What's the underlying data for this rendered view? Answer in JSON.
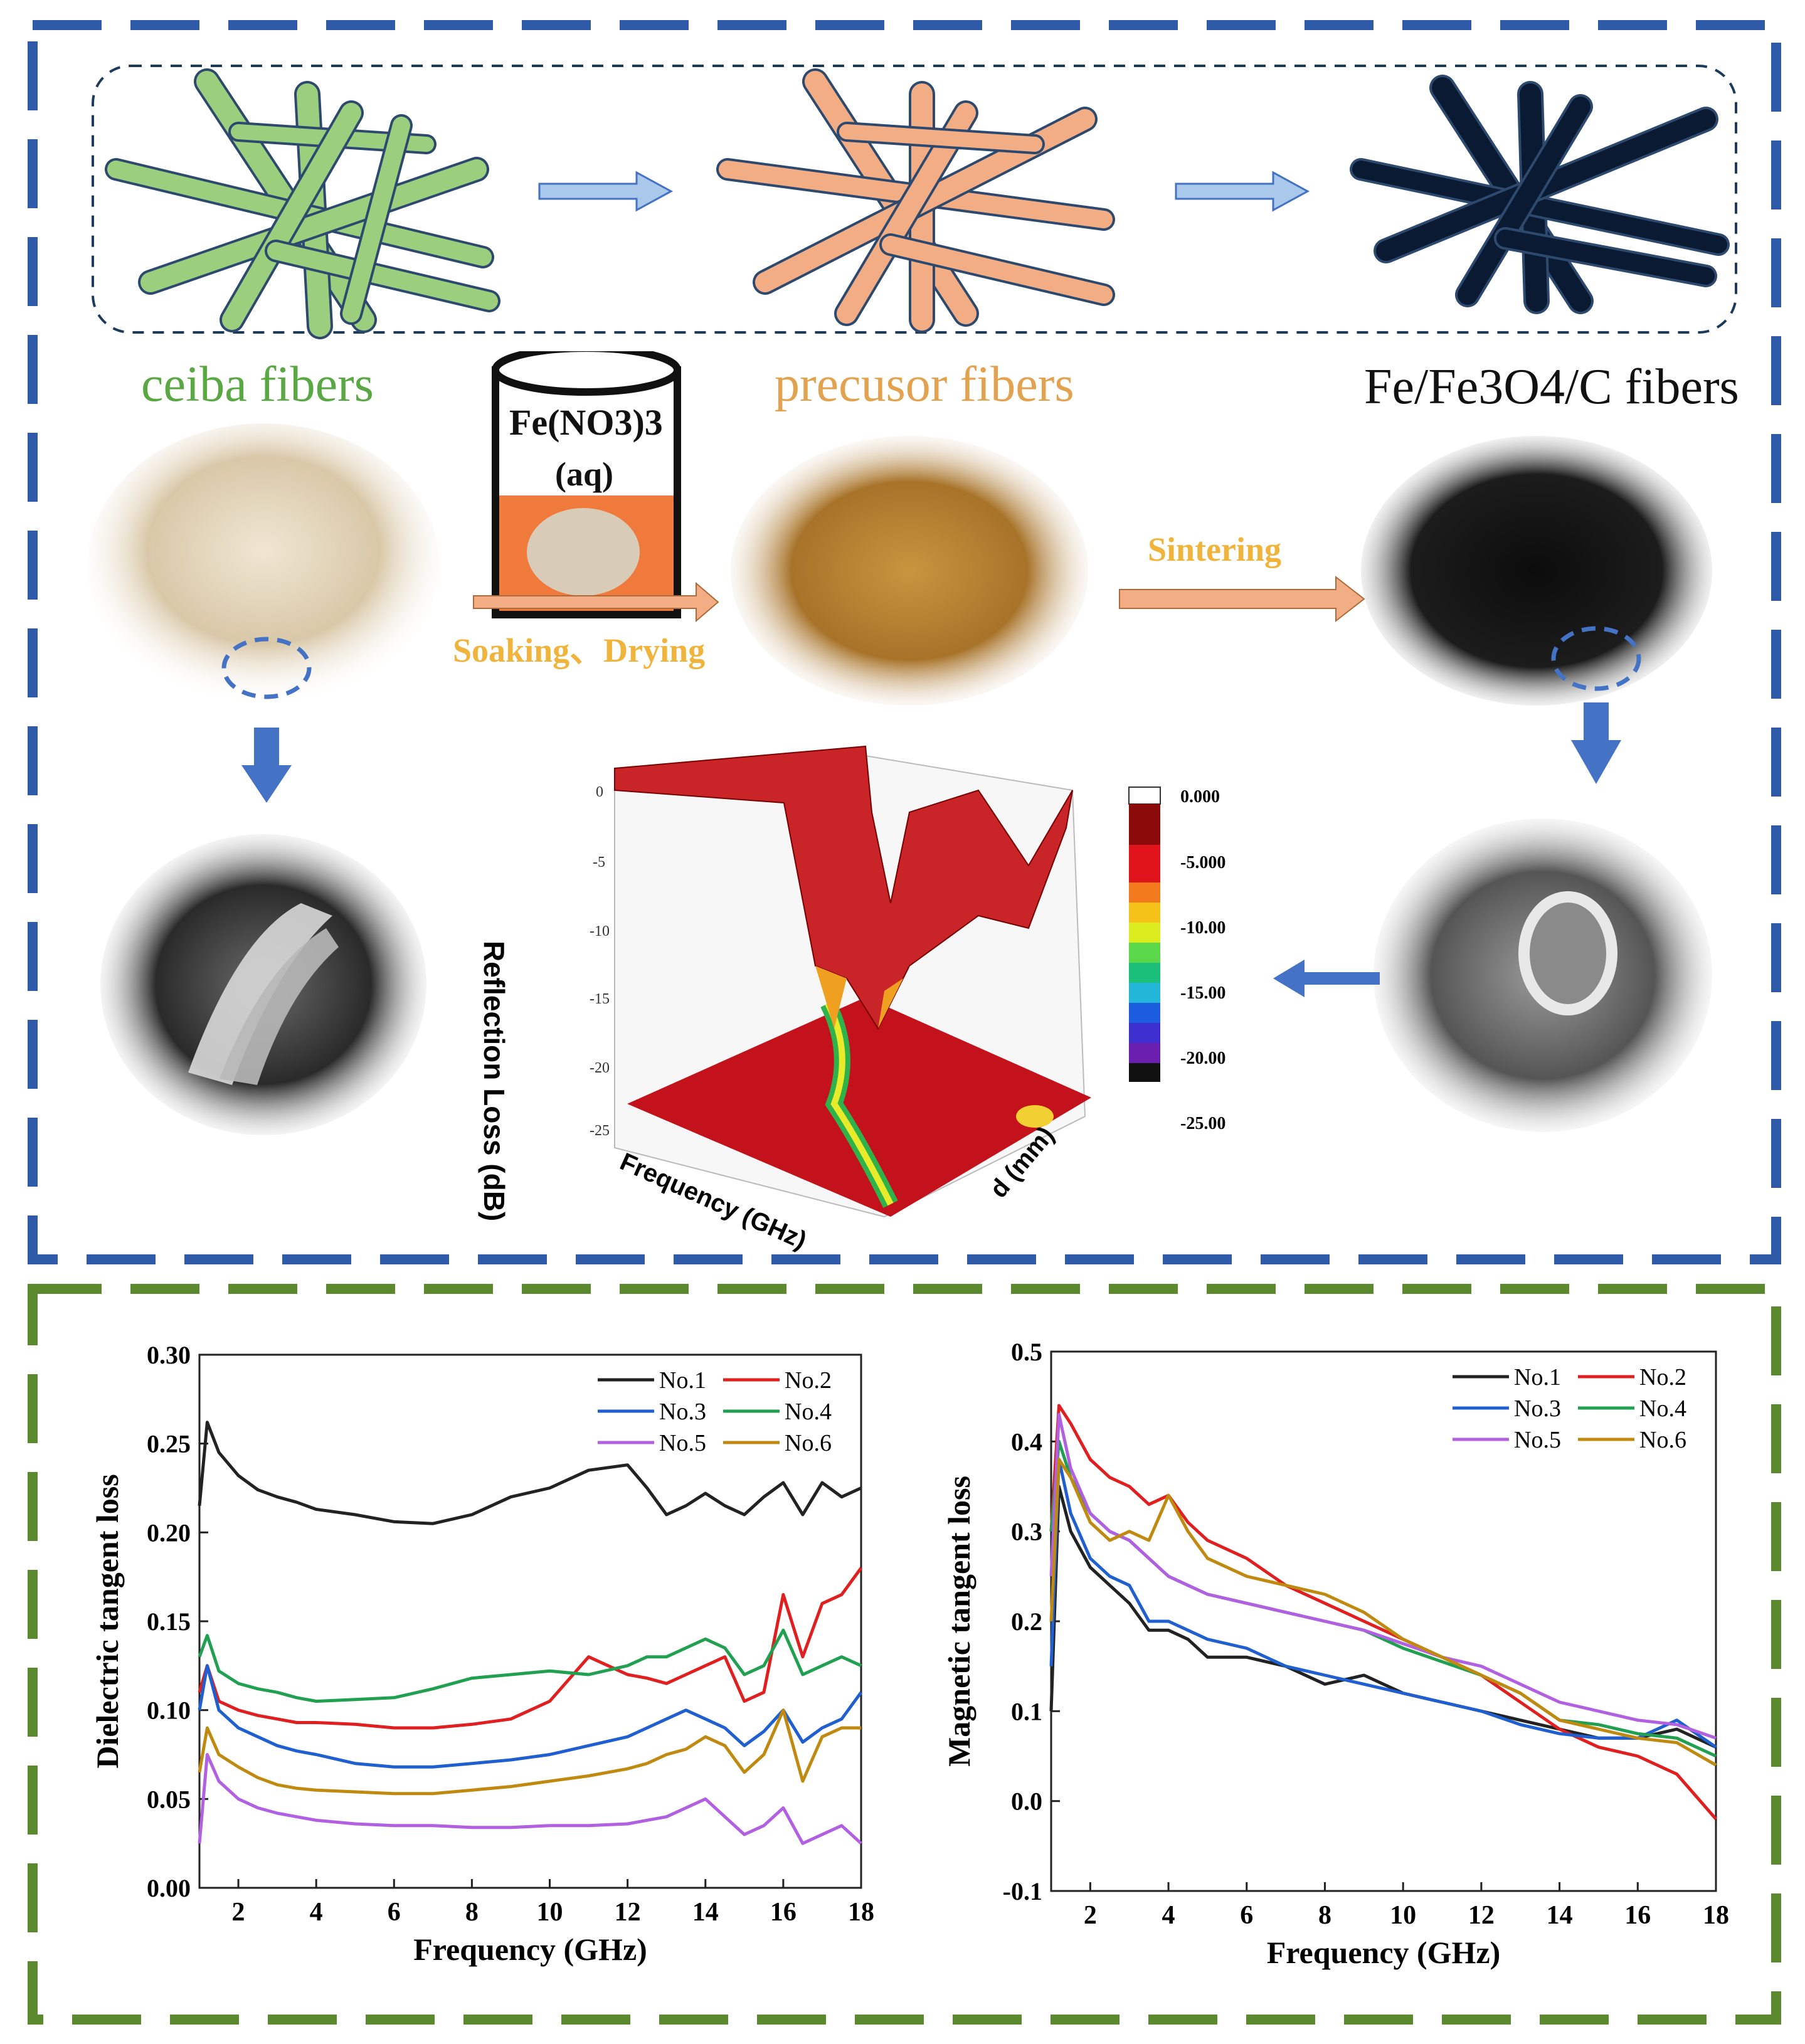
{
  "top_panel": {
    "stage_labels": {
      "ceiba": "ceiba fibers",
      "precursor": "precusor fibers",
      "product": "Fe/Fe3O4/C fibers"
    },
    "bucket_formula": "Fe(NO3)3",
    "bucket_aq": "(aq)",
    "step_soak": "Soaking、Drying",
    "step_sinter": "Sintering",
    "colors": {
      "ceiba_fiber": "#9bcf7e",
      "precursor_fiber": "#f3ad85",
      "carbon_fiber": "#0b1a33",
      "arrow_light": "#a9c8ea",
      "arrow_orange": "#f2ad85",
      "arrow_blue": "#4472c4",
      "top_border": "#2f5aa8",
      "bottom_border": "#5b8a2e"
    }
  },
  "rl_plot": {
    "z_label": "Reflection Loss (dB)",
    "x_label": "Frequency (GHz)",
    "y_label": "d (mm)",
    "z_ticks": [
      "0",
      "-5",
      "-10",
      "-15",
      "-20",
      "-25"
    ],
    "colorbar_ticks": [
      "0.000",
      "-5.000",
      "-10.00",
      "-15.00",
      "-20.00",
      "-25.00"
    ]
  },
  "chart_data": [
    {
      "type": "line",
      "title": "",
      "xlabel": "Frequency (GHz)",
      "ylabel": "Dielectric tangent loss",
      "xlim": [
        1,
        18
      ],
      "ylim": [
        0,
        0.3
      ],
      "xticks": [
        2,
        4,
        6,
        8,
        10,
        12,
        14,
        16,
        18
      ],
      "yticks": [
        0.0,
        0.05,
        0.1,
        0.15,
        0.2,
        0.25,
        0.3
      ],
      "ytick_labels": [
        "0.00",
        "0.05",
        "0.10",
        "0.15",
        "0.20",
        "0.25",
        "0.30"
      ],
      "legend_position": "top-right",
      "x": [
        1,
        1.2,
        1.5,
        2,
        2.5,
        3,
        3.5,
        4,
        5,
        6,
        7,
        8,
        9,
        10,
        11,
        12,
        12.5,
        13,
        13.5,
        14,
        14.5,
        15,
        15.5,
        16,
        16.5,
        17,
        17.5,
        18
      ],
      "series": [
        {
          "name": "No.1",
          "color": "#222222",
          "values": [
            0.215,
            0.262,
            0.245,
            0.232,
            0.224,
            0.22,
            0.217,
            0.213,
            0.21,
            0.206,
            0.205,
            0.21,
            0.22,
            0.225,
            0.235,
            0.238,
            0.225,
            0.21,
            0.215,
            0.222,
            0.215,
            0.21,
            0.22,
            0.228,
            0.21,
            0.228,
            0.22,
            0.225
          ]
        },
        {
          "name": "No.2",
          "color": "#e02020",
          "values": [
            0.11,
            0.125,
            0.105,
            0.1,
            0.097,
            0.095,
            0.093,
            0.093,
            0.092,
            0.09,
            0.09,
            0.092,
            0.095,
            0.105,
            0.13,
            0.12,
            0.118,
            0.115,
            0.12,
            0.125,
            0.13,
            0.105,
            0.11,
            0.165,
            0.13,
            0.16,
            0.165,
            0.18
          ]
        },
        {
          "name": "No.3",
          "color": "#1f5fd0",
          "values": [
            0.1,
            0.125,
            0.1,
            0.09,
            0.085,
            0.08,
            0.077,
            0.075,
            0.07,
            0.068,
            0.068,
            0.07,
            0.072,
            0.075,
            0.08,
            0.085,
            0.09,
            0.095,
            0.1,
            0.095,
            0.09,
            0.08,
            0.088,
            0.1,
            0.082,
            0.09,
            0.095,
            0.11
          ]
        },
        {
          "name": "No.4",
          "color": "#20a050",
          "values": [
            0.13,
            0.142,
            0.122,
            0.115,
            0.112,
            0.11,
            0.107,
            0.105,
            0.106,
            0.107,
            0.112,
            0.118,
            0.12,
            0.122,
            0.12,
            0.125,
            0.13,
            0.13,
            0.135,
            0.14,
            0.135,
            0.12,
            0.125,
            0.145,
            0.12,
            0.125,
            0.13,
            0.125
          ]
        },
        {
          "name": "No.5",
          "color": "#b060e0",
          "values": [
            0.025,
            0.075,
            0.06,
            0.05,
            0.045,
            0.042,
            0.04,
            0.038,
            0.036,
            0.035,
            0.035,
            0.034,
            0.034,
            0.035,
            0.035,
            0.036,
            0.038,
            0.04,
            0.045,
            0.05,
            0.04,
            0.03,
            0.035,
            0.045,
            0.025,
            0.03,
            0.035,
            0.025
          ]
        },
        {
          "name": "No.6",
          "color": "#c08a10",
          "values": [
            0.065,
            0.09,
            0.075,
            0.068,
            0.062,
            0.058,
            0.056,
            0.055,
            0.054,
            0.053,
            0.053,
            0.055,
            0.057,
            0.06,
            0.063,
            0.067,
            0.07,
            0.075,
            0.078,
            0.085,
            0.08,
            0.065,
            0.075,
            0.1,
            0.06,
            0.085,
            0.09,
            0.09
          ]
        }
      ]
    },
    {
      "type": "line",
      "title": "",
      "xlabel": "Frequency (GHz)",
      "ylabel": "Magnetic tangent loss",
      "xlim": [
        1,
        18
      ],
      "ylim": [
        -0.1,
        0.5
      ],
      "xticks": [
        2,
        4,
        6,
        8,
        10,
        12,
        14,
        16,
        18
      ],
      "yticks": [
        -0.1,
        0.0,
        0.1,
        0.2,
        0.3,
        0.4,
        0.5
      ],
      "ytick_labels": [
        "-0.1",
        "0.0",
        "0.1",
        "0.2",
        "0.3",
        "0.4",
        "0.5"
      ],
      "legend_position": "top-right",
      "x": [
        1,
        1.2,
        1.5,
        2,
        2.5,
        3,
        3.5,
        4,
        4.5,
        5,
        6,
        7,
        8,
        9,
        10,
        11,
        12,
        13,
        14,
        15,
        16,
        17,
        18
      ],
      "series": [
        {
          "name": "No.1",
          "color": "#222222",
          "values": [
            0.1,
            0.35,
            0.3,
            0.26,
            0.24,
            0.22,
            0.19,
            0.19,
            0.18,
            0.16,
            0.16,
            0.15,
            0.13,
            0.14,
            0.12,
            0.11,
            0.1,
            0.09,
            0.08,
            0.07,
            0.07,
            0.08,
            0.06
          ]
        },
        {
          "name": "No.2",
          "color": "#e02020",
          "values": [
            0.3,
            0.44,
            0.42,
            0.38,
            0.36,
            0.35,
            0.33,
            0.34,
            0.31,
            0.29,
            0.27,
            0.24,
            0.22,
            0.2,
            0.18,
            0.16,
            0.14,
            0.11,
            0.08,
            0.06,
            0.05,
            0.03,
            -0.02
          ]
        },
        {
          "name": "No.3",
          "color": "#1f5fd0",
          "values": [
            0.15,
            0.38,
            0.32,
            0.27,
            0.25,
            0.24,
            0.2,
            0.2,
            0.19,
            0.18,
            0.17,
            0.15,
            0.14,
            0.13,
            0.12,
            0.11,
            0.1,
            0.085,
            0.075,
            0.07,
            0.07,
            0.09,
            0.06
          ]
        },
        {
          "name": "No.4",
          "color": "#20a050",
          "values": [
            0.3,
            0.4,
            0.36,
            0.32,
            0.3,
            0.29,
            0.27,
            0.25,
            0.24,
            0.23,
            0.22,
            0.21,
            0.2,
            0.19,
            0.17,
            0.155,
            0.14,
            0.12,
            0.09,
            0.085,
            0.075,
            0.07,
            0.05
          ]
        },
        {
          "name": "No.5",
          "color": "#b060e0",
          "values": [
            0.25,
            0.43,
            0.37,
            0.32,
            0.3,
            0.29,
            0.27,
            0.25,
            0.24,
            0.23,
            0.22,
            0.21,
            0.2,
            0.19,
            0.175,
            0.16,
            0.15,
            0.13,
            0.11,
            0.1,
            0.09,
            0.085,
            0.07
          ]
        },
        {
          "name": "No.6",
          "color": "#c08a10",
          "values": [
            0.2,
            0.38,
            0.36,
            0.31,
            0.29,
            0.3,
            0.29,
            0.34,
            0.3,
            0.27,
            0.25,
            0.24,
            0.23,
            0.21,
            0.18,
            0.16,
            0.14,
            0.12,
            0.09,
            0.08,
            0.07,
            0.065,
            0.04
          ]
        }
      ]
    }
  ]
}
